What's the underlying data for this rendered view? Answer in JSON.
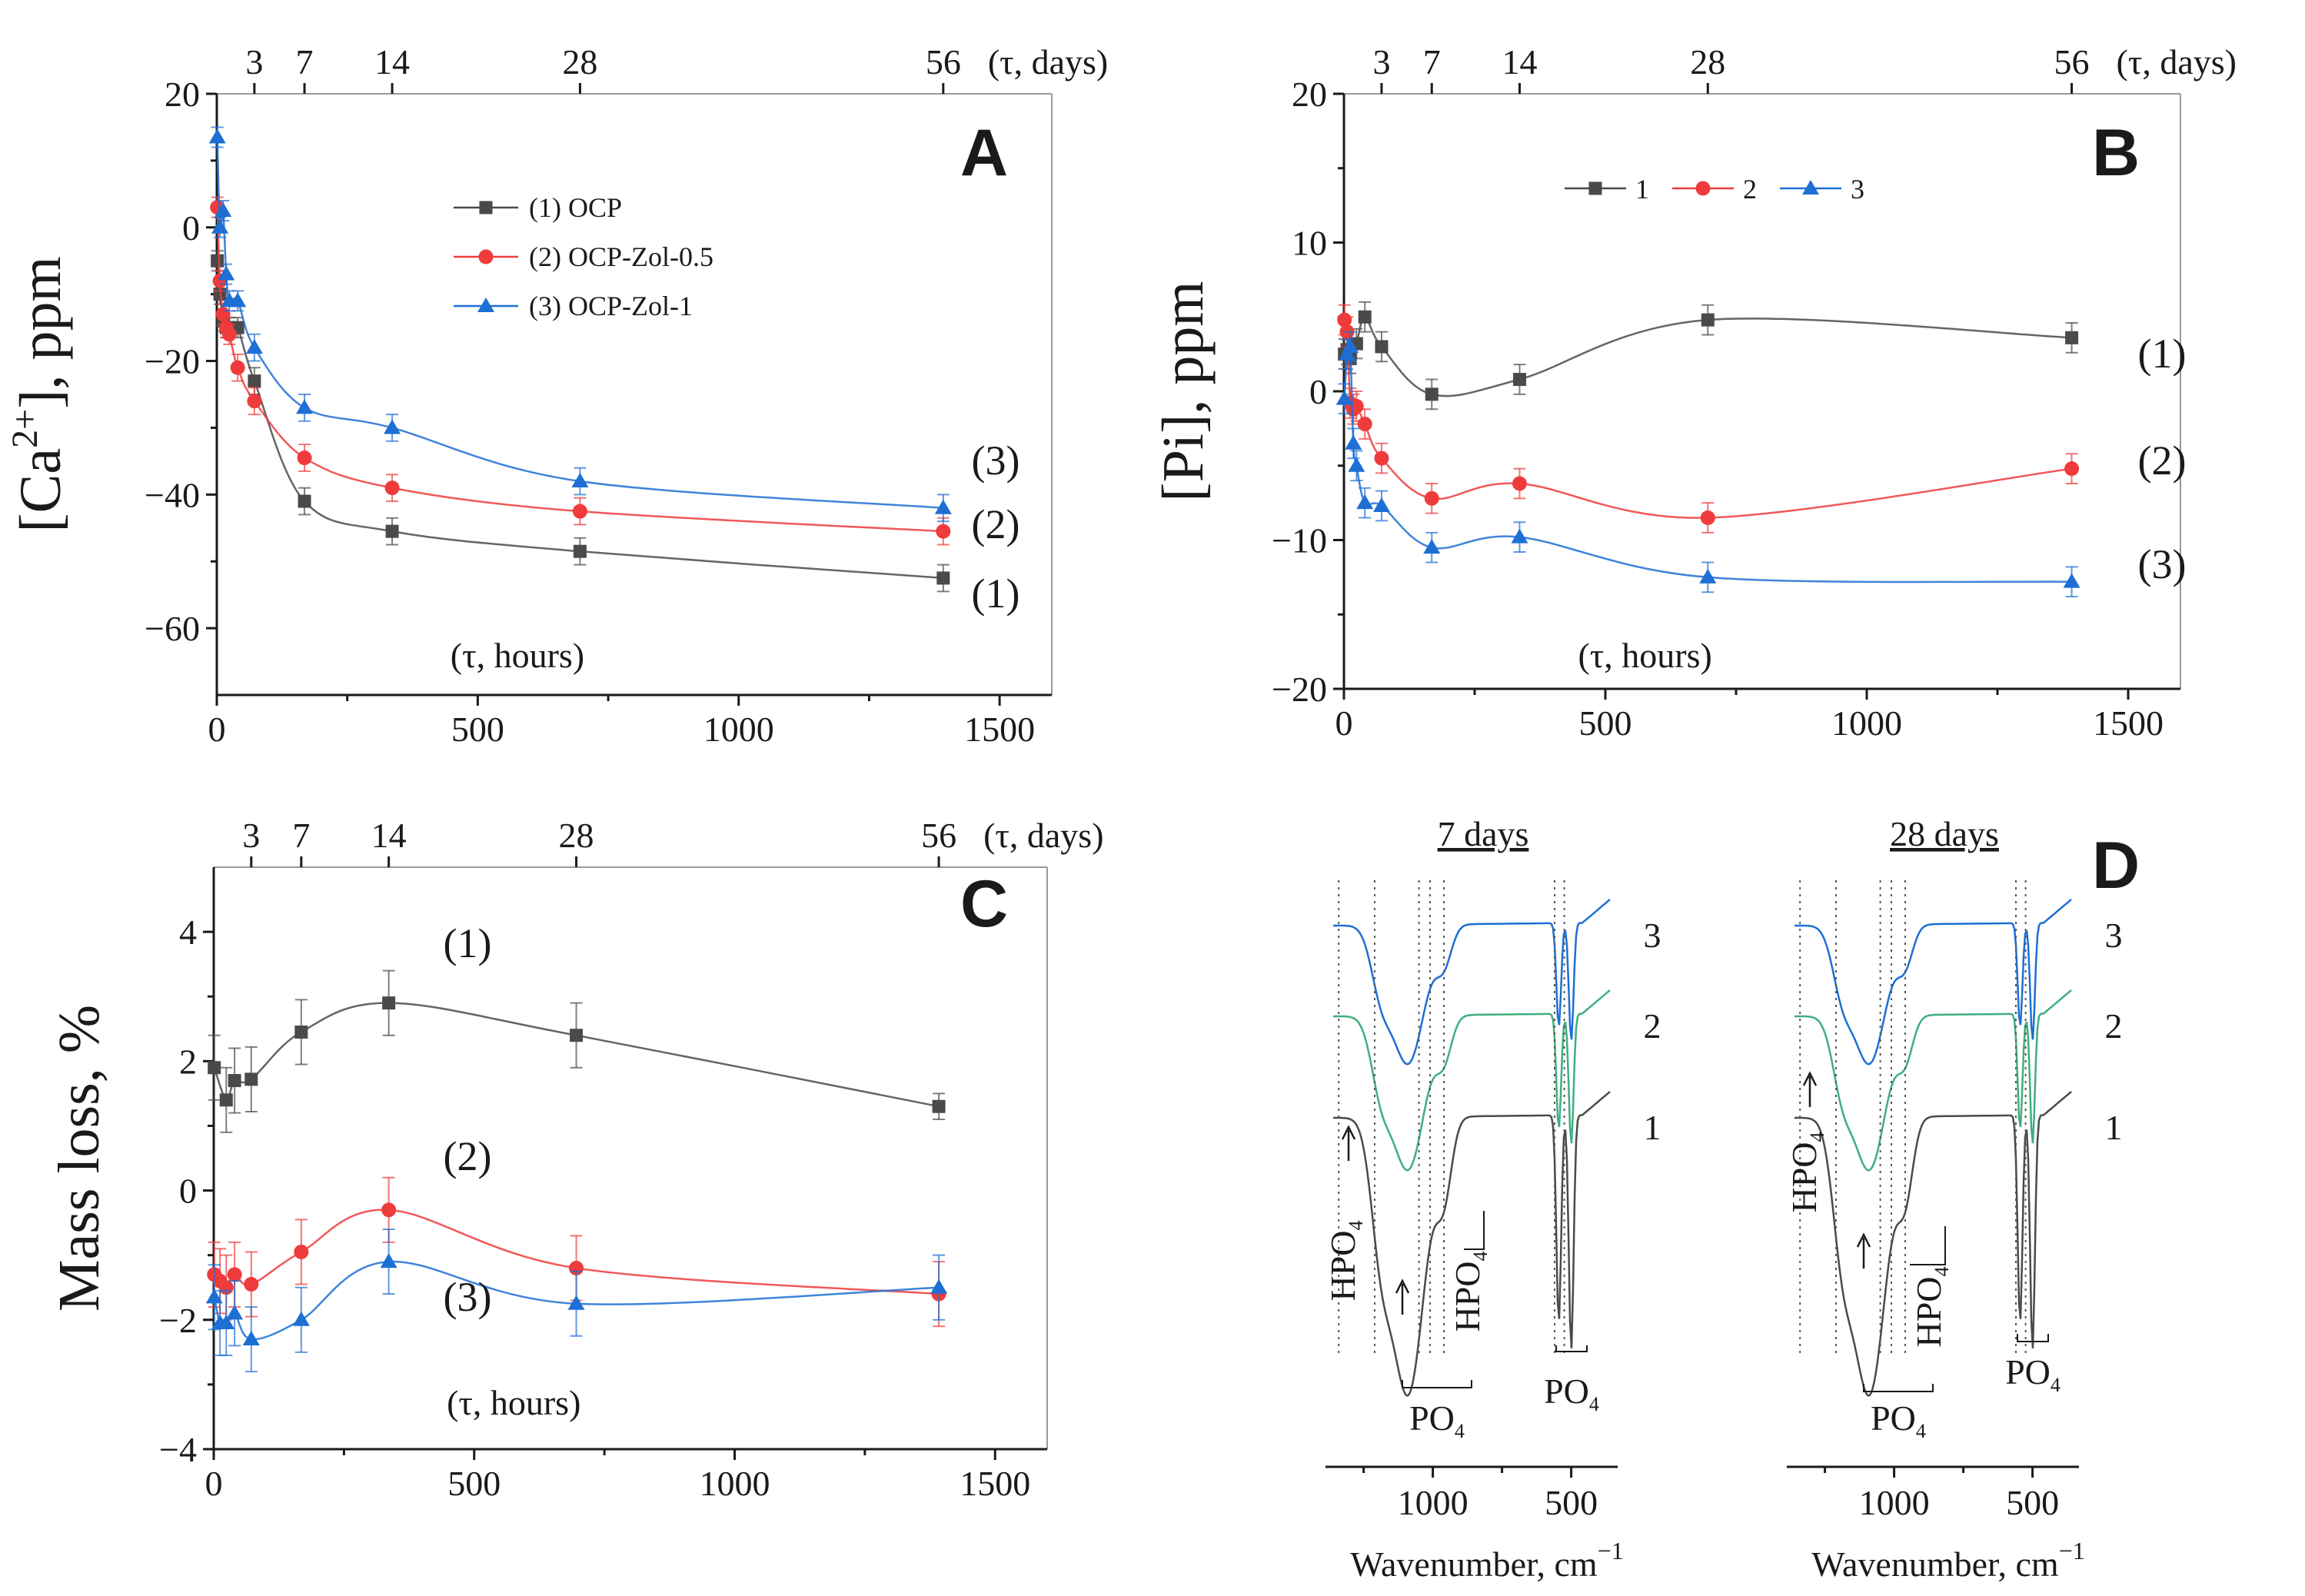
{
  "chart_data": [
    {
      "panel": "A",
      "type": "line",
      "ylabel": "[Ca2+], ppm",
      "ylabel_main": "[Ca",
      "ylabel_sup": "2+",
      "ylabel_tail": "], ppm",
      "xlabel": "(τ, hours)",
      "top_axis_label": "(τ, days)",
      "top_ticks": [
        {
          "label": "3",
          "x": 72
        },
        {
          "label": "7",
          "x": 168
        },
        {
          "label": "14",
          "x": 336
        },
        {
          "label": "28",
          "x": 696
        },
        {
          "label": "56",
          "x": 1392
        }
      ],
      "xlim": [
        0,
        1600
      ],
      "ylim": [
        -70,
        20
      ],
      "xticks": [
        0,
        500,
        1000,
        1500
      ],
      "xtick_labels": [
        "0",
        "500",
        "1000",
        "1500"
      ],
      "yticks": [
        20,
        0,
        -20,
        -40,
        -60
      ],
      "ytick_labels": [
        "20",
        "0",
        "−20",
        "−40",
        "−60"
      ],
      "legend": true,
      "series": [
        {
          "name": "(1) OCP",
          "tag": "(1)",
          "color": "#4a4a4a",
          "marker": "square",
          "x": [
            1,
            6,
            12,
            18,
            24,
            40,
            72,
            168,
            336,
            696,
            1392
          ],
          "y": [
            -5,
            -10,
            -14,
            -15,
            -15,
            -15,
            -23,
            -41,
            -45.5,
            -48.5,
            -52.5
          ],
          "err": [
            1.5,
            1.5,
            1.5,
            1.5,
            1.5,
            1.5,
            2,
            2,
            2,
            2,
            2
          ]
        },
        {
          "name": "(2) OCP-Zol-0.5",
          "tag": "(2)",
          "color": "#ef3b3b",
          "marker": "circle",
          "x": [
            1,
            6,
            12,
            18,
            24,
            40,
            72,
            168,
            336,
            696,
            1392
          ],
          "y": [
            3,
            -8,
            -13,
            -15,
            -16,
            -21,
            -26,
            -34.5,
            -39,
            -42.5,
            -45.5
          ],
          "err": [
            1.5,
            1.5,
            1.5,
            1.5,
            1.5,
            2,
            2,
            2,
            2,
            2,
            2
          ]
        },
        {
          "name": "(3) OCP-Zol-1",
          "tag": "(3)",
          "color": "#1d6fd4",
          "marker": "triangle",
          "x": [
            1,
            6,
            12,
            18,
            24,
            40,
            72,
            168,
            336,
            696,
            1392
          ],
          "y": [
            13.5,
            0,
            2.5,
            -7,
            -11,
            -11,
            -18,
            -27,
            -30,
            -38,
            -42
          ],
          "err": [
            1.5,
            1.5,
            1.5,
            1.5,
            1.5,
            1.5,
            2,
            2,
            2,
            2,
            2
          ]
        }
      ]
    },
    {
      "panel": "B",
      "type": "line",
      "ylabel": "[Pi], ppm",
      "xlabel": "(τ, hours)",
      "top_axis_label": "(τ, days)",
      "top_ticks": [
        {
          "label": "3",
          "x": 72
        },
        {
          "label": "7",
          "x": 168
        },
        {
          "label": "14",
          "x": 336
        },
        {
          "label": "28",
          "x": 696
        },
        {
          "label": "56",
          "x": 1392
        }
      ],
      "xlim": [
        0,
        1600
      ],
      "ylim": [
        -20,
        20
      ],
      "xticks": [
        0,
        500,
        1000,
        1500
      ],
      "xtick_labels": [
        "0",
        "500",
        "1000",
        "1500"
      ],
      "yticks": [
        20,
        10,
        0,
        -10,
        -20
      ],
      "ytick_labels": [
        "20",
        "10",
        "0",
        "−10",
        "−20"
      ],
      "legend": true,
      "series": [
        {
          "name": "1",
          "tag": "(1)",
          "color": "#4a4a4a",
          "marker": "square",
          "x": [
            1,
            6,
            12,
            24,
            40,
            72,
            168,
            336,
            696,
            1392
          ],
          "y": [
            2.5,
            2.8,
            2.2,
            3.2,
            5,
            3,
            -0.2,
            0.8,
            4.8,
            3.6
          ],
          "err": [
            1,
            1,
            1,
            1,
            1,
            1,
            1,
            1,
            1,
            1
          ]
        },
        {
          "name": "2",
          "tag": "(2)",
          "color": "#ef3b3b",
          "marker": "circle",
          "x": [
            1,
            6,
            12,
            18,
            24,
            40,
            72,
            168,
            336,
            696,
            1392
          ],
          "y": [
            4.8,
            4,
            -0.8,
            -1.2,
            -1,
            -2.2,
            -4.5,
            -7.2,
            -6.2,
            -8.5,
            -5.2
          ],
          "err": [
            1,
            1,
            1,
            1,
            1,
            1,
            1,
            1,
            1,
            1,
            1
          ]
        },
        {
          "name": "3",
          "tag": "(3)",
          "color": "#1d6fd4",
          "marker": "triangle",
          "x": [
            1,
            6,
            12,
            18,
            24,
            40,
            72,
            168,
            336,
            696,
            1392
          ],
          "y": [
            -0.5,
            2.5,
            3,
            -3.5,
            -5,
            -7.5,
            -7.7,
            -10.5,
            -9.8,
            -12.5,
            -12.8
          ],
          "err": [
            1,
            1,
            1,
            1,
            1,
            1,
            1,
            1,
            1,
            1,
            1
          ]
        }
      ]
    },
    {
      "panel": "C",
      "type": "line",
      "ylabel": "Mass loss, %",
      "xlabel": "(τ, hours)",
      "top_axis_label": "(τ, days)",
      "top_ticks": [
        {
          "label": "3",
          "x": 72
        },
        {
          "label": "7",
          "x": 168
        },
        {
          "label": "14",
          "x": 336
        },
        {
          "label": "28",
          "x": 696
        },
        {
          "label": "56",
          "x": 1392
        }
      ],
      "xlim": [
        0,
        1600
      ],
      "ylim": [
        -4,
        5
      ],
      "xticks": [
        0,
        500,
        1000,
        1500
      ],
      "xtick_labels": [
        "0",
        "500",
        "1000",
        "1500"
      ],
      "yticks": [
        4,
        2,
        0,
        -2,
        -4
      ],
      "ytick_labels": [
        "4",
        "2",
        "0",
        "−2",
        "−4"
      ],
      "legend": false,
      "series": [
        {
          "name": "1",
          "tag": "(1)",
          "color": "#4a4a4a",
          "marker": "square",
          "x": [
            1,
            24,
            40,
            72,
            168,
            336,
            696,
            1392
          ],
          "y": [
            1.9,
            1.4,
            1.7,
            1.72,
            2.45,
            2.9,
            2.4,
            1.3
          ],
          "err": [
            0.5,
            0.5,
            0.5,
            0.5,
            0.5,
            0.5,
            0.5,
            0.2
          ]
        },
        {
          "name": "2",
          "tag": "(2)",
          "color": "#ef3b3b",
          "marker": "circle",
          "x": [
            1,
            12,
            24,
            40,
            72,
            168,
            336,
            696,
            1392
          ],
          "y": [
            -1.3,
            -1.4,
            -1.5,
            -1.3,
            -1.45,
            -0.95,
            -0.3,
            -1.2,
            -1.6
          ],
          "err": [
            0.5,
            0.5,
            0.5,
            0.5,
            0.5,
            0.5,
            0.5,
            0.5,
            0.5
          ]
        },
        {
          "name": "3",
          "tag": "(3)",
          "color": "#1d6fd4",
          "marker": "triangle",
          "x": [
            1,
            12,
            24,
            40,
            72,
            168,
            336,
            696,
            1392
          ],
          "y": [
            -1.65,
            -2.05,
            -2.05,
            -1.9,
            -2.3,
            -2,
            -1.1,
            -1.75,
            -1.5
          ],
          "err": [
            0.5,
            0.5,
            0.5,
            0.5,
            0.5,
            0.5,
            0.5,
            0.5,
            0.5
          ]
        }
      ]
    },
    {
      "panel": "D",
      "type": "line",
      "xlabel": "Wavenumber, cm−1",
      "xlabel_main": "Wavenumber, cm",
      "xlabel_sup": "−1",
      "xticks": [
        1000,
        500
      ],
      "xtick_labels": [
        "1000",
        "500"
      ],
      "subplots": [
        {
          "title": "7 days",
          "trace_labels": [
            "3",
            "2",
            "1"
          ]
        },
        {
          "title": "28 days",
          "trace_labels": [
            "3",
            "2",
            "1"
          ]
        }
      ],
      "annotations": {
        "hpo4": "HPO",
        "po4": "PO",
        "sub4": "4"
      }
    }
  ],
  "colors": {
    "ocp": "#4a4a4a",
    "zol05": "#ef3b3b",
    "zol1": "#1d6fd4",
    "ftir_mid": "#3fae7e"
  }
}
